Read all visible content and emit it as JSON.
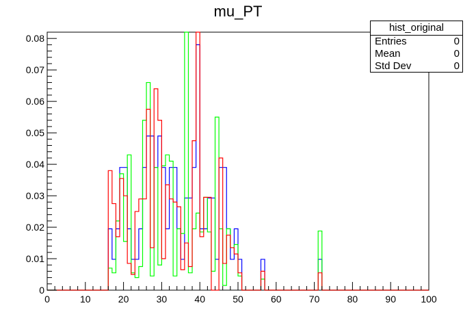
{
  "chart_data": {
    "type": "histogram-step",
    "title": "mu_PT",
    "xlim": [
      0,
      100
    ],
    "ylim": [
      0,
      0.082
    ],
    "x_ticks": [
      0,
      10,
      20,
      30,
      40,
      50,
      60,
      70,
      80,
      90,
      100
    ],
    "x_tick_labels": [
      "0",
      "10",
      "20",
      "30",
      "40",
      "50",
      "60",
      "70",
      "80",
      "90",
      "100"
    ],
    "y_ticks": [
      0,
      0.01,
      0.02,
      0.03,
      0.04,
      0.05,
      0.06,
      0.07,
      0.08
    ],
    "y_tick_labels": [
      "0",
      "0.01",
      "0.02",
      "0.03",
      "0.04",
      "0.05",
      "0.06",
      "0.07",
      "0.08"
    ],
    "bin_width": 1,
    "bin_start": 0,
    "series": [
      {
        "color": "#0000ff",
        "values": [
          0,
          0,
          0,
          0,
          0,
          0,
          0,
          0,
          0,
          0,
          0,
          0,
          0,
          0,
          0,
          0,
          0.0195,
          0.0098,
          0.0195,
          0.039,
          0.039,
          0.0195,
          0.0098,
          0.0098,
          0.0195,
          0.039,
          0.049,
          0.049,
          0.039,
          0.049,
          0.039,
          0.0195,
          0.039,
          0.039,
          0.0195,
          0.0098,
          0.0293,
          0.0293,
          0.039,
          0.078,
          0.0195,
          0.0195,
          0.0293,
          0.0293,
          0.0098,
          0.039,
          0.039,
          0.0195,
          0.0098,
          0.0195,
          0.0098,
          0,
          0,
          0,
          0,
          0,
          0.0098,
          0,
          0,
          0,
          0,
          0,
          0,
          0,
          0,
          0,
          0,
          0,
          0,
          0,
          0,
          0.0098,
          0,
          0,
          0,
          0,
          0,
          0,
          0,
          0,
          0,
          0,
          0,
          0,
          0,
          0,
          0,
          0,
          0,
          0,
          0,
          0,
          0,
          0,
          0,
          0,
          0,
          0,
          0,
          0
        ]
      },
      {
        "color": "#00ff00",
        "values": [
          0,
          0,
          0,
          0,
          0,
          0,
          0,
          0,
          0,
          0,
          0,
          0,
          0,
          0,
          0,
          0,
          0.007,
          0.0055,
          0.022,
          0.037,
          0.0155,
          0.043,
          0.0055,
          0.004,
          0.0075,
          0.054,
          0.066,
          0.0045,
          0.039,
          0.008,
          0.0395,
          0.043,
          0.041,
          0.0045,
          0.0195,
          0.018,
          0.082,
          0.0055,
          0.0195,
          0.0245,
          0.0185,
          0.0295,
          0.0185,
          0.006,
          0.055,
          0.0195,
          0.0015,
          0.0195,
          0.0135,
          0.0145,
          0.0045,
          0,
          0,
          0,
          0,
          0,
          0.0035,
          0,
          0,
          0,
          0,
          0,
          0,
          0,
          0,
          0,
          0,
          0,
          0,
          0,
          0,
          0.0188,
          0,
          0,
          0,
          0,
          0,
          0,
          0,
          0,
          0,
          0,
          0,
          0,
          0,
          0,
          0,
          0,
          0,
          0,
          0,
          0,
          0,
          0,
          0,
          0,
          0,
          0,
          0,
          0
        ]
      },
      {
        "color": "#ff0000",
        "values": [
          0,
          0,
          0,
          0,
          0,
          0,
          0,
          0,
          0,
          0,
          0,
          0,
          0,
          0,
          0,
          0,
          0.038,
          0.0275,
          0.017,
          0.0355,
          0.03,
          0.0085,
          0.005,
          0.025,
          0.029,
          0.029,
          0.0575,
          0.0135,
          0.064,
          0.054,
          0.01,
          0.0335,
          0.029,
          0.028,
          0.0265,
          0.0065,
          0.015,
          0.0075,
          0.0475,
          0.082,
          0.017,
          0.0295,
          0.0295,
          0,
          0,
          0.042,
          0.0085,
          0.0175,
          0.0135,
          0.0115,
          0.0055,
          0,
          0,
          0,
          0,
          0,
          0.006,
          0,
          0,
          0,
          0,
          0,
          0,
          0,
          0,
          0,
          0,
          0,
          0,
          0,
          0,
          0.0055,
          0,
          0,
          0,
          0,
          0,
          0,
          0,
          0,
          0,
          0,
          0,
          0,
          0,
          0,
          0,
          0,
          0,
          0,
          0,
          0,
          0,
          0,
          0,
          0,
          0,
          0,
          0,
          0
        ]
      }
    ]
  },
  "stats": {
    "name": "hist_original",
    "rows": [
      {
        "label": "Entries",
        "value": "0"
      },
      {
        "label": "Mean",
        "value": "0"
      },
      {
        "label": "Std Dev",
        "value": "0"
      }
    ]
  }
}
